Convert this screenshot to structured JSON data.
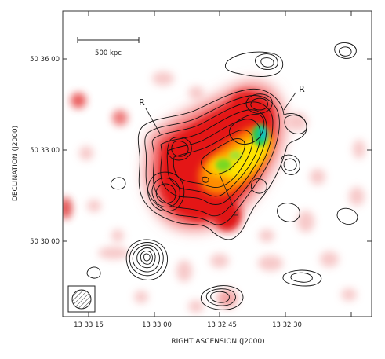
{
  "figure": {
    "scale_bar_label": "500 kpc",
    "labels": {
      "relic_left": "R",
      "relic_right": "R",
      "halo": "H"
    },
    "x_axis": {
      "label": "RIGHT ASCENSION (J2000)",
      "ticks": [
        "13 33 15",
        "13 33 00",
        "13 32 45",
        "13 32 30"
      ]
    },
    "y_axis": {
      "label": "DECLINATION (J2000)",
      "ticks": [
        "50 36 00",
        "50 33 00",
        "50 30 00"
      ]
    },
    "colors": {
      "frame": "#333333",
      "contour": "#111111",
      "xray_low": "#f7c0c0",
      "xray_mid": "#e81010",
      "xray_high": "#ffd800",
      "xray_peak": "#12c8b0"
    }
  }
}
